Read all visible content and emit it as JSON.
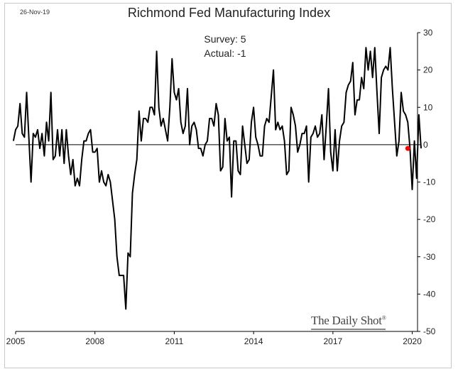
{
  "header": {
    "date_stamp": "26-Nov-19",
    "title": "Richmond Fed Manufacturing Index"
  },
  "annotation": {
    "survey": "Survey: 5",
    "actual": "Actual:  -1"
  },
  "watermark": {
    "text": "The Daily Shot",
    "mark": "®"
  },
  "colors": {
    "line": "#000000",
    "zero_line": "#000000",
    "actual_point": "#ff0000"
  },
  "chart_data": {
    "type": "line",
    "title": "Richmond Fed Manufacturing Index",
    "xlabel": "",
    "ylabel": "",
    "xlim": [
      2005.0,
      2020.2
    ],
    "ylim": [
      -50,
      30
    ],
    "x_ticks": [
      "2005",
      "2008",
      "2011",
      "2014",
      "2017",
      "2020"
    ],
    "y_ticks": [
      "30",
      "20",
      "10",
      "0",
      "-10",
      "-20",
      "-30",
      "-40",
      "-50"
    ],
    "grid": false,
    "legend": "none",
    "series": [
      {
        "x_start": 2004.917,
        "x_step": 0.08333,
        "values": [
          1,
          4,
          5,
          11,
          3,
          2,
          14,
          2,
          -10,
          3,
          2,
          4,
          -1,
          3,
          -3,
          6,
          1,
          14,
          -4,
          -3,
          4,
          -3,
          4,
          -5,
          4,
          -3,
          -8,
          -4,
          -11,
          -9,
          -11,
          -4,
          1,
          1,
          3,
          4,
          -2,
          -2,
          -1,
          -10,
          -7,
          -10,
          -11,
          -8,
          -10,
          -15,
          -20,
          -30,
          -35,
          -35,
          -35,
          -44,
          -29,
          -30,
          -13,
          -8,
          -4,
          9,
          1,
          7,
          7,
          6,
          10,
          10,
          8,
          25,
          10,
          5,
          7,
          4,
          1,
          10,
          23,
          14,
          12,
          15,
          6,
          3,
          5,
          15,
          0,
          5,
          6,
          4,
          -1,
          -1,
          -3,
          0,
          1,
          7,
          7,
          5,
          11,
          8,
          -7,
          -6,
          7,
          1,
          2,
          -14,
          1,
          1,
          -7,
          -8,
          5,
          0,
          -5,
          -4,
          6,
          10,
          2,
          0,
          -3,
          -3,
          5,
          7,
          6,
          13,
          20,
          4,
          6,
          4,
          5,
          1,
          -8,
          -7,
          10,
          8,
          5,
          -2,
          0,
          3,
          3,
          5,
          -10,
          2,
          3,
          5,
          2,
          3,
          8,
          -4,
          5,
          15,
          -2,
          -7,
          4,
          -7,
          1,
          5,
          6,
          14,
          16,
          17,
          22,
          8,
          12,
          12,
          18,
          15,
          26,
          20,
          25,
          18,
          26,
          14,
          3,
          18,
          20,
          21,
          20,
          26,
          15,
          6,
          -3,
          1,
          14,
          9,
          8,
          6,
          -1,
          -12,
          1,
          -9,
          8,
          -1
        ]
      }
    ],
    "highlight_point": {
      "x": 2019.833,
      "y": -1
    }
  }
}
